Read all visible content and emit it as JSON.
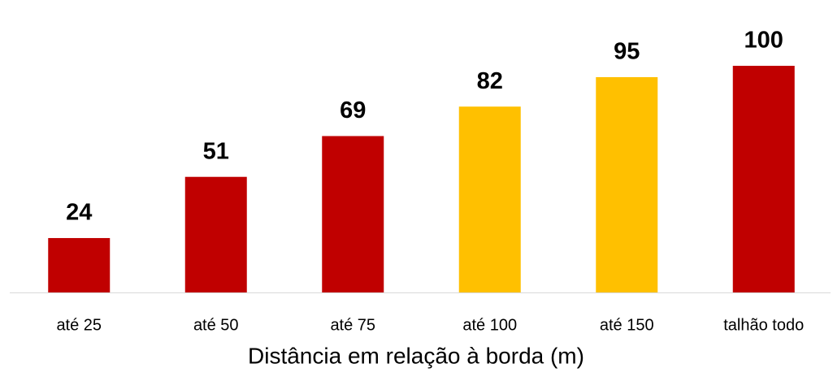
{
  "chart_data": {
    "type": "bar",
    "categories": [
      "até 25",
      "até 50",
      "até 75",
      "até 100",
      "até 150",
      "talhão todo"
    ],
    "values": [
      24,
      51,
      69,
      82,
      95,
      100
    ],
    "colors": [
      "#c00000",
      "#c00000",
      "#c00000",
      "#ffc000",
      "#ffc000",
      "#c00000"
    ],
    "x_label": "Distância em relação à borda (m)"
  }
}
